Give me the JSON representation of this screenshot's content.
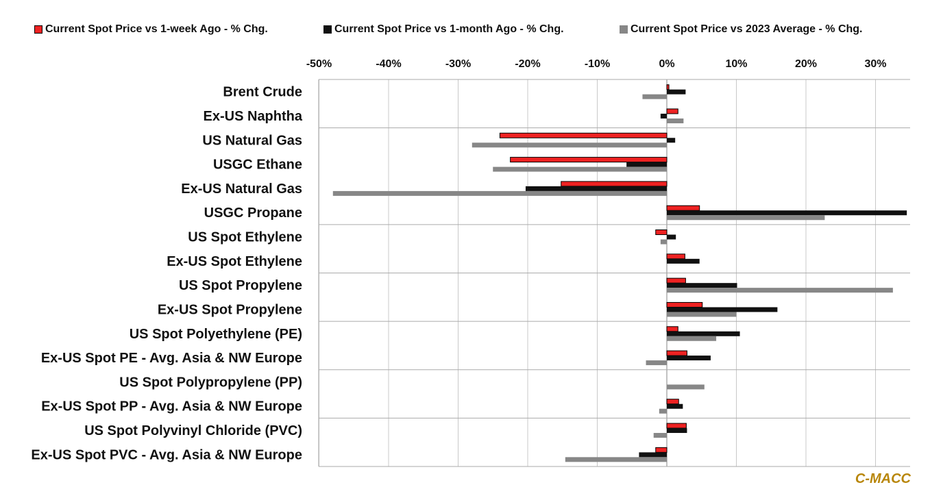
{
  "legend": [
    {
      "label": "Current Spot Price vs 1-week Ago - % Chg.",
      "color": "#ee2222"
    },
    {
      "label": "Current Spot Price vs 1-month Ago - % Chg.",
      "color": "#111111"
    },
    {
      "label": "Current Spot Price vs 2023 Average - % Chg.",
      "color": "#878787"
    }
  ],
  "source": "C-MACC",
  "chart_data": {
    "type": "bar",
    "orientation": "horizontal",
    "title": "",
    "xlabel": "",
    "ylabel": "",
    "xlim": [
      -50,
      35
    ],
    "ticks": [
      -50,
      -40,
      -30,
      -20,
      -10,
      0,
      10,
      20,
      30
    ],
    "tick_labels": [
      "-50%",
      "-40%",
      "-30%",
      "-20%",
      "-10%",
      "0%",
      "10%",
      "20%",
      "30%"
    ],
    "grid": true,
    "legend_position": "top",
    "categories": [
      "Brent Crude",
      "Ex-US Naphtha",
      "US Natural Gas",
      "USGC Ethane",
      "Ex-US Natural Gas",
      "USGC Propane",
      "US Spot Ethylene",
      "Ex-US Spot Ethylene",
      "US Spot Propylene",
      "Ex-US Spot Propylene",
      "US Spot Polyethylene (PE)",
      "Ex-US Spot PE - Avg. Asia & NW Europe",
      "US Spot Polypropylene (PP)",
      "Ex-US Spot PP - Avg. Asia & NW Europe",
      "US Spot Polyvinyl Chloride (PVC)",
      "Ex-US Spot PVC - Avg. Asia & NW Europe"
    ],
    "group_separators_after": [
      1,
      5,
      7,
      9,
      11,
      13
    ],
    "series": [
      {
        "name": "Current Spot Price vs 1-week Ago - % Chg.",
        "color": "#ee2222",
        "values": [
          0.3,
          1.6,
          -24.0,
          -22.5,
          -15.2,
          4.7,
          -1.6,
          2.6,
          2.7,
          5.1,
          1.6,
          2.9,
          0,
          1.7,
          2.8,
          -1.6
        ]
      },
      {
        "name": "Current Spot Price vs 1-month Ago - % Chg.",
        "color": "#111111",
        "values": [
          2.7,
          -0.9,
          1.2,
          -5.8,
          -20.3,
          34.5,
          1.3,
          4.7,
          10.1,
          15.9,
          10.5,
          6.3,
          0,
          2.3,
          2.9,
          -4.0
        ]
      },
      {
        "name": "Current Spot Price vs 2023 Average - % Chg.",
        "color": "#878787",
        "values": [
          -3.5,
          2.4,
          -28.0,
          -25.0,
          -48.0,
          22.7,
          -0.9,
          0,
          32.5,
          10.0,
          7.1,
          -3.0,
          5.4,
          -1.1,
          -1.9,
          -14.6
        ]
      }
    ]
  }
}
